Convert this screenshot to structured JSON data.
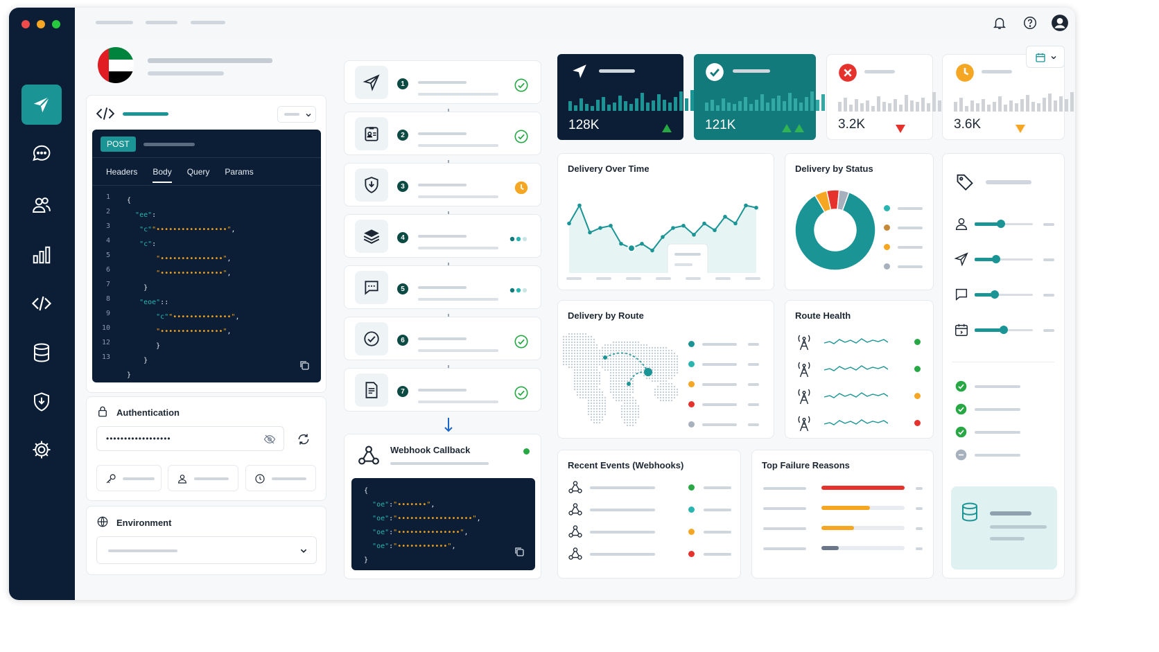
{
  "request": {
    "method": "POST",
    "tabs": [
      "Headers",
      "Body",
      "Query",
      "Params"
    ],
    "active_tab": "Body",
    "line_numbers": [
      "1",
      "2",
      "3",
      "4",
      "5",
      "6",
      "7",
      "8",
      "9",
      "10",
      "12",
      "13"
    ]
  },
  "auth": {
    "label": "Authentication",
    "value": "••••••••••••••••••"
  },
  "env": {
    "label": "Environment"
  },
  "steps": [
    {
      "n": "1",
      "status": "done"
    },
    {
      "n": "2",
      "status": "done"
    },
    {
      "n": "3",
      "status": "pending"
    },
    {
      "n": "4",
      "status": "progress"
    },
    {
      "n": "5",
      "status": "progress"
    },
    {
      "n": "6",
      "status": "done"
    },
    {
      "n": "7",
      "status": "done"
    }
  ],
  "webhook": {
    "label": "Webhook Callback"
  },
  "kpis": [
    {
      "value": "128K",
      "trend": "up"
    },
    {
      "value": "121K",
      "trend": "up"
    },
    {
      "value": "3.2K",
      "trend": "down"
    },
    {
      "value": "3.6K",
      "trend": "down"
    }
  ],
  "panels": {
    "delivery_over_time": "Delivery Over Time",
    "delivery_by_status": "Delivery by Status",
    "delivery_by_route": "Delivery by Route",
    "route_health": "Route Health",
    "recent_events": "Recent Events (Webhooks)",
    "top_failures": "Top Failure Reasons"
  },
  "colors": {
    "navy": "#0c1e36",
    "teal": "#1a9494",
    "green": "#27a844",
    "orange": "#f5a623",
    "red": "#e5322d",
    "gray": "#a7b1bd"
  },
  "route_health_status": [
    "green",
    "green",
    "orange",
    "red"
  ],
  "recent_events_status": [
    "green",
    "teal",
    "orange",
    "red"
  ],
  "chart_data": [
    {
      "type": "line",
      "title": "Delivery Over Time",
      "values": [
        42,
        50,
        38,
        40,
        41,
        33,
        31,
        33,
        30,
        36,
        40,
        41,
        37,
        42,
        39,
        45,
        42,
        50,
        49
      ]
    },
    {
      "type": "pie",
      "title": "Delivery by Status",
      "values": [
        86,
        5,
        5,
        4
      ],
      "colors": [
        "#1a9494",
        "#f5a623",
        "#e5322d",
        "#a7b1bd"
      ]
    },
    {
      "type": "bar",
      "title": "Top Failure Reasons",
      "values": [
        1.0,
        0.58,
        0.39,
        0.21
      ],
      "colors": [
        "#e5322d",
        "#f5a623",
        "#f5a623",
        "#6b7788"
      ]
    }
  ]
}
